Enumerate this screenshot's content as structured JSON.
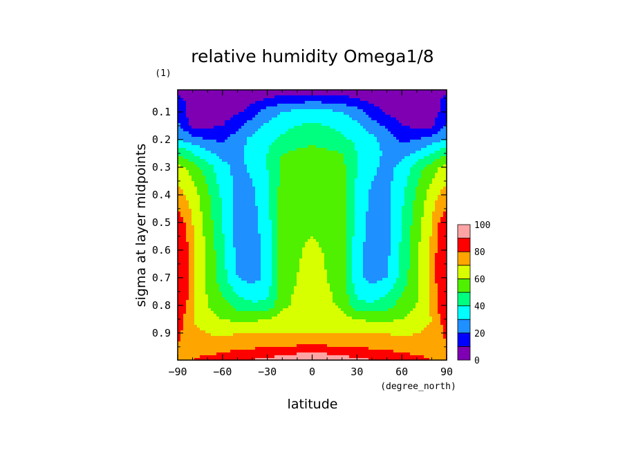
{
  "chart_data": {
    "type": "heatmap",
    "title": "relative humidity Omega1/8",
    "unit": "(1)",
    "xlabel": "latitude",
    "xunit": "(degree_north)",
    "ylabel": "sigma at layer midpoints",
    "xlim": [
      -90,
      90
    ],
    "ylim": [
      0.02,
      0.998
    ],
    "y_inverted": true,
    "x_ticks": [
      "-90",
      "-60",
      "-30",
      "0",
      "30",
      "60",
      "90"
    ],
    "y_ticks": [
      "0.1",
      "0.2",
      "0.3",
      "0.4",
      "0.5",
      "0.6",
      "0.7",
      "0.8",
      "0.9"
    ],
    "colorbar": {
      "levels": [
        0,
        10,
        20,
        30,
        40,
        50,
        60,
        70,
        80,
        90,
        100
      ],
      "tick_labels": [
        "0",
        "20",
        "40",
        "60",
        "80",
        "100"
      ],
      "colors": [
        "#7f00b2",
        "#0000ff",
        "#1e90ff",
        "#00ffff",
        "#00ff7f",
        "#4ff000",
        "#d8ff00",
        "#ffa500",
        "#ff0000",
        "#ffa4a4"
      ]
    },
    "field": {
      "description_levels": "lat symmetric; values in percent",
      "lat": [
        0,
        10,
        20,
        30,
        40,
        50,
        60,
        70,
        80,
        85,
        90
      ],
      "sigma": [
        0.02,
        0.06,
        0.1,
        0.15,
        0.2,
        0.25,
        0.3,
        0.4,
        0.5,
        0.6,
        0.7,
        0.8,
        0.85,
        0.9,
        0.94,
        0.97,
        0.998
      ],
      "values": [
        [
          2,
          3,
          4,
          3,
          2,
          2,
          2,
          2,
          2,
          3,
          5
        ],
        [
          18,
          18,
          16,
          12,
          8,
          5,
          5,
          5,
          5,
          10,
          15
        ],
        [
          35,
          33,
          30,
          25,
          15,
          8,
          5,
          5,
          5,
          10,
          15
        ],
        [
          42,
          40,
          37,
          32,
          25,
          18,
          10,
          8,
          8,
          15,
          22
        ],
        [
          48,
          46,
          42,
          38,
          33,
          25,
          18,
          20,
          25,
          28,
          30
        ],
        [
          53,
          52,
          50,
          40,
          34,
          28,
          26,
          32,
          40,
          45,
          48
        ],
        [
          55,
          55,
          53,
          40,
          32,
          27,
          33,
          45,
          55,
          60,
          62
        ],
        [
          56,
          56,
          54,
          38,
          28,
          27,
          38,
          52,
          65,
          70,
          75
        ],
        [
          58,
          57,
          55,
          36,
          26,
          26,
          40,
          55,
          70,
          80,
          85
        ],
        [
          62,
          59,
          56,
          34,
          25,
          27,
          42,
          58,
          72,
          85,
          90
        ],
        [
          63,
          60,
          56,
          33,
          26,
          30,
          44,
          58,
          73,
          85,
          90
        ],
        [
          66,
          62,
          58,
          42,
          42,
          46,
          54,
          60,
          72,
          83,
          88
        ],
        [
          68,
          66,
          64,
          60,
          58,
          58,
          60,
          64,
          70,
          78,
          85
        ],
        [
          70,
          70,
          70,
          70,
          70,
          70,
          68,
          70,
          72,
          78,
          82
        ],
        [
          78,
          78,
          77,
          76,
          75,
          74,
          73,
          73,
          75,
          78,
          80
        ],
        [
          90,
          89,
          88,
          86,
          84,
          82,
          80,
          78,
          78,
          78,
          80
        ],
        [
          95,
          94,
          93,
          92,
          90,
          88,
          85,
          83,
          80,
          80,
          80
        ]
      ]
    }
  }
}
